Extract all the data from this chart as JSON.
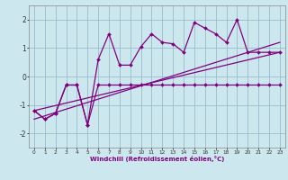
{
  "zigzag_x": [
    0,
    1,
    2,
    3,
    4,
    5,
    6,
    7,
    8,
    9,
    10,
    11,
    12,
    13,
    14,
    15,
    16,
    17,
    18,
    19,
    20,
    21,
    22,
    23
  ],
  "zigzag_y": [
    -1.2,
    -1.5,
    -1.3,
    -0.3,
    -0.3,
    -1.7,
    0.6,
    1.5,
    0.4,
    0.4,
    1.05,
    1.5,
    1.2,
    1.15,
    0.85,
    1.9,
    1.7,
    1.5,
    1.2,
    2.0,
    0.85,
    0.85,
    0.85,
    0.85
  ],
  "flat_x": [
    0,
    1,
    2,
    3,
    4,
    5,
    6,
    7,
    8,
    9,
    10,
    11,
    12,
    13,
    14,
    15,
    16,
    17,
    18,
    19,
    20,
    21,
    22,
    23
  ],
  "flat_y": [
    -1.2,
    -1.5,
    -1.3,
    -0.3,
    -0.3,
    -1.7,
    -0.3,
    -0.3,
    -0.3,
    -0.3,
    -0.3,
    -0.3,
    -0.3,
    -0.3,
    -0.3,
    -0.3,
    -0.3,
    -0.3,
    -0.3,
    -0.3,
    -0.3,
    -0.3,
    -0.3,
    -0.3
  ],
  "trend1_x": [
    0,
    23
  ],
  "trend1_y": [
    -1.5,
    1.2
  ],
  "trend2_x": [
    0,
    23
  ],
  "trend2_y": [
    -1.2,
    0.85
  ],
  "color": "#800080",
  "bg_color": "#cce8ee",
  "grid_color": "#99bbcc",
  "xlabel": "Windchill (Refroidissement éolien,°C)",
  "xlim": [
    -0.5,
    23.5
  ],
  "ylim": [
    -2.5,
    2.5
  ],
  "yticks": [
    -2,
    -1,
    0,
    1,
    2
  ],
  "xticks": [
    0,
    1,
    2,
    3,
    4,
    5,
    6,
    7,
    8,
    9,
    10,
    11,
    12,
    13,
    14,
    15,
    16,
    17,
    18,
    19,
    20,
    21,
    22,
    23
  ]
}
